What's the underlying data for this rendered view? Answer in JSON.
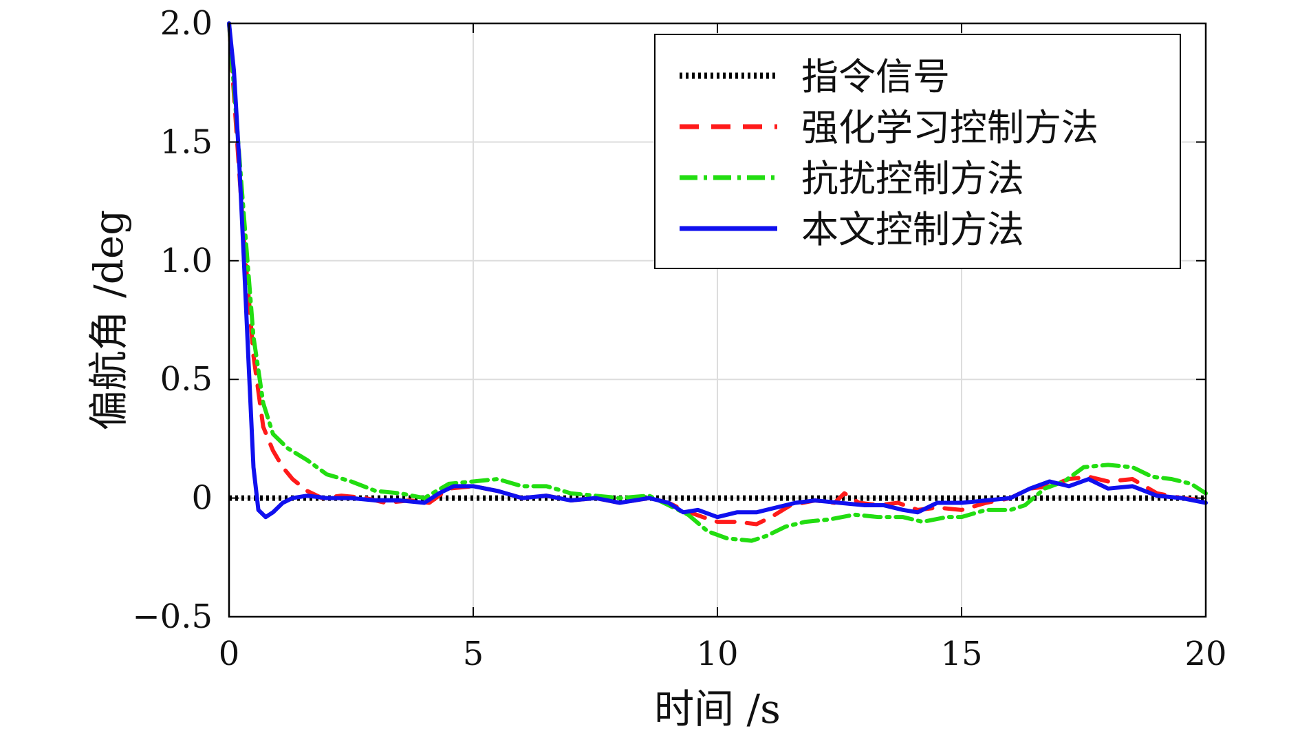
{
  "chart_data": {
    "type": "line",
    "xlabel": "时间 /s",
    "ylabel": "偏航角 /deg",
    "xlim": [
      0,
      20
    ],
    "ylim": [
      -0.5,
      2.0
    ],
    "xticks": [
      0,
      5,
      10,
      15,
      20
    ],
    "yticks": [
      -0.5,
      0,
      0.5,
      1.0,
      1.5,
      2.0
    ],
    "xtick_labels": [
      "0",
      "5",
      "10",
      "15",
      "20"
    ],
    "ytick_labels": [
      "−0.5",
      "0",
      "0.5",
      "1.0",
      "1.5",
      "2.0"
    ],
    "grid": true,
    "legend_position": "top-right",
    "series": [
      {
        "name": "指令信号",
        "color": "#000000",
        "style": "dotted",
        "points": [
          [
            0,
            0
          ],
          [
            20,
            0
          ]
        ]
      },
      {
        "name": "强化学习控制方法",
        "color": "#ff1a1a",
        "style": "dashed",
        "points": [
          [
            0,
            2.0
          ],
          [
            0.3,
            1.1
          ],
          [
            0.5,
            0.6
          ],
          [
            0.7,
            0.3
          ],
          [
            0.9,
            0.2
          ],
          [
            1.1,
            0.13
          ],
          [
            1.3,
            0.08
          ],
          [
            1.6,
            0.03
          ],
          [
            1.9,
            0.0
          ],
          [
            2.3,
            0.01
          ],
          [
            2.8,
            0.0
          ],
          [
            3.2,
            -0.02
          ],
          [
            3.7,
            -0.01
          ],
          [
            4.1,
            -0.02
          ],
          [
            4.5,
            0.04
          ],
          [
            5.0,
            0.05
          ],
          [
            5.5,
            0.03
          ],
          [
            6.0,
            0.0
          ],
          [
            6.5,
            0.01
          ],
          [
            7.0,
            -0.01
          ],
          [
            7.5,
            0.0
          ],
          [
            8.0,
            -0.02
          ],
          [
            8.6,
            0.0
          ],
          [
            9.0,
            -0.02
          ],
          [
            9.3,
            -0.05
          ],
          [
            9.7,
            -0.08
          ],
          [
            10.0,
            -0.1
          ],
          [
            10.4,
            -0.1
          ],
          [
            10.8,
            -0.11
          ],
          [
            11.1,
            -0.08
          ],
          [
            11.5,
            -0.03
          ],
          [
            12.0,
            -0.01
          ],
          [
            12.4,
            -0.02
          ],
          [
            12.6,
            0.02
          ],
          [
            12.9,
            -0.02
          ],
          [
            13.3,
            -0.03
          ],
          [
            13.7,
            -0.02
          ],
          [
            14.1,
            -0.05
          ],
          [
            14.5,
            -0.04
          ],
          [
            15.0,
            -0.05
          ],
          [
            15.5,
            -0.02
          ],
          [
            16.0,
            0.0
          ],
          [
            16.4,
            0.04
          ],
          [
            16.8,
            0.05
          ],
          [
            17.2,
            0.08
          ],
          [
            17.6,
            0.09
          ],
          [
            18.0,
            0.07
          ],
          [
            18.5,
            0.08
          ],
          [
            19.0,
            0.02
          ],
          [
            19.5,
            0.0
          ],
          [
            20.0,
            -0.01
          ]
        ]
      },
      {
        "name": "抗扰控制方法",
        "color": "#22dd11",
        "style": "dashdot",
        "points": [
          [
            0,
            2.0
          ],
          [
            0.3,
            1.2
          ],
          [
            0.5,
            0.68
          ],
          [
            0.7,
            0.4
          ],
          [
            0.9,
            0.27
          ],
          [
            1.2,
            0.21
          ],
          [
            1.6,
            0.16
          ],
          [
            2.0,
            0.1
          ],
          [
            2.5,
            0.07
          ],
          [
            3.0,
            0.03
          ],
          [
            3.5,
            0.02
          ],
          [
            4.0,
            0.0
          ],
          [
            4.5,
            0.06
          ],
          [
            5.0,
            0.07
          ],
          [
            5.5,
            0.08
          ],
          [
            6.0,
            0.05
          ],
          [
            6.5,
            0.05
          ],
          [
            7.0,
            0.02
          ],
          [
            7.5,
            0.01
          ],
          [
            8.0,
            0.0
          ],
          [
            8.6,
            0.01
          ],
          [
            9.0,
            -0.03
          ],
          [
            9.4,
            -0.07
          ],
          [
            9.8,
            -0.14
          ],
          [
            10.2,
            -0.17
          ],
          [
            10.7,
            -0.18
          ],
          [
            11.0,
            -0.16
          ],
          [
            11.4,
            -0.12
          ],
          [
            11.8,
            -0.1
          ],
          [
            12.3,
            -0.09
          ],
          [
            12.8,
            -0.07
          ],
          [
            13.3,
            -0.08
          ],
          [
            13.8,
            -0.08
          ],
          [
            14.2,
            -0.1
          ],
          [
            14.7,
            -0.08
          ],
          [
            15.0,
            -0.08
          ],
          [
            15.5,
            -0.05
          ],
          [
            16.0,
            -0.05
          ],
          [
            16.3,
            -0.03
          ],
          [
            16.7,
            0.04
          ],
          [
            17.1,
            0.07
          ],
          [
            17.5,
            0.13
          ],
          [
            18.0,
            0.14
          ],
          [
            18.5,
            0.13
          ],
          [
            18.9,
            0.09
          ],
          [
            19.3,
            0.08
          ],
          [
            19.7,
            0.06
          ],
          [
            20.0,
            0.02
          ]
        ]
      },
      {
        "name": "本文控制方法",
        "color": "#1010ee",
        "style": "solid",
        "points": [
          [
            0,
            2.0
          ],
          [
            0.1,
            1.8
          ],
          [
            0.2,
            1.45
          ],
          [
            0.3,
            1.02
          ],
          [
            0.4,
            0.57
          ],
          [
            0.5,
            0.13
          ],
          [
            0.6,
            -0.05
          ],
          [
            0.75,
            -0.08
          ],
          [
            0.9,
            -0.06
          ],
          [
            1.1,
            -0.02
          ],
          [
            1.3,
            0.0
          ],
          [
            1.6,
            0.01
          ],
          [
            2.0,
            0.0
          ],
          [
            2.5,
            0.0
          ],
          [
            3.0,
            -0.01
          ],
          [
            3.5,
            -0.01
          ],
          [
            4.0,
            -0.02
          ],
          [
            4.3,
            0.02
          ],
          [
            4.6,
            0.05
          ],
          [
            5.0,
            0.05
          ],
          [
            5.5,
            0.03
          ],
          [
            6.0,
            0.0
          ],
          [
            6.5,
            0.01
          ],
          [
            7.0,
            -0.01
          ],
          [
            7.5,
            0.0
          ],
          [
            8.0,
            -0.02
          ],
          [
            8.6,
            0.0
          ],
          [
            9.0,
            -0.02
          ],
          [
            9.3,
            -0.06
          ],
          [
            9.6,
            -0.05
          ],
          [
            10.0,
            -0.08
          ],
          [
            10.4,
            -0.06
          ],
          [
            10.8,
            -0.06
          ],
          [
            11.2,
            -0.04
          ],
          [
            11.6,
            -0.02
          ],
          [
            12.0,
            -0.01
          ],
          [
            12.5,
            -0.02
          ],
          [
            13.0,
            -0.03
          ],
          [
            13.4,
            -0.03
          ],
          [
            13.8,
            -0.05
          ],
          [
            14.1,
            -0.06
          ],
          [
            14.5,
            -0.02
          ],
          [
            15.0,
            -0.02
          ],
          [
            15.5,
            -0.01
          ],
          [
            16.0,
            0.0
          ],
          [
            16.4,
            0.04
          ],
          [
            16.8,
            0.07
          ],
          [
            17.2,
            0.05
          ],
          [
            17.6,
            0.08
          ],
          [
            18.0,
            0.04
          ],
          [
            18.5,
            0.05
          ],
          [
            19.0,
            0.01
          ],
          [
            19.5,
            0.0
          ],
          [
            20.0,
            -0.02
          ]
        ]
      }
    ]
  }
}
